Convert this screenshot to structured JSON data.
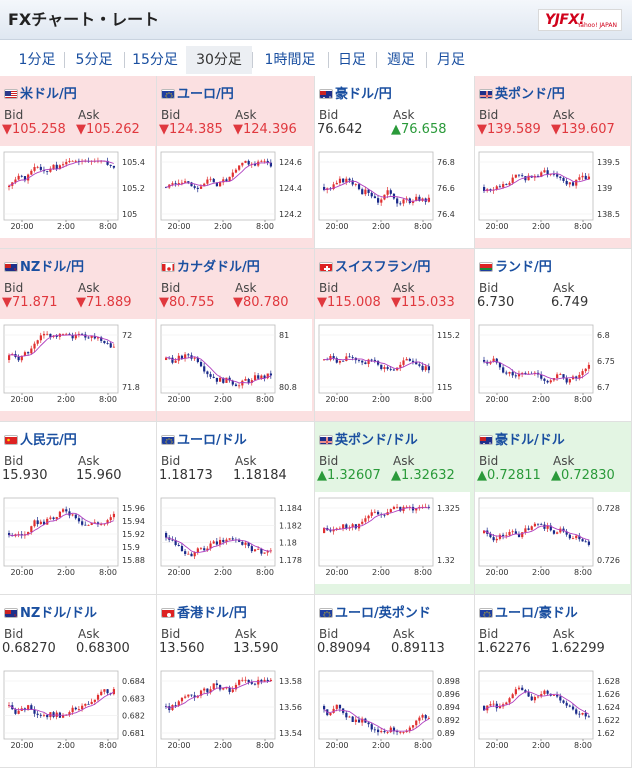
{
  "header": {
    "title": "FXチャート・レート",
    "logo": "YJFX!",
    "logo_sub": "Yahoo! JAPAN"
  },
  "tabs": [
    {
      "label": "1分足",
      "active": false
    },
    {
      "label": "5分足",
      "active": false
    },
    {
      "label": "15分足",
      "active": false
    },
    {
      "label": "30分足",
      "active": true
    },
    {
      "label": "1時間足",
      "active": false
    },
    {
      "label": "日足",
      "active": false
    },
    {
      "label": "週足",
      "active": false
    },
    {
      "label": "月足",
      "active": false
    }
  ],
  "bid_label": "Bid",
  "ask_label": "Ask",
  "colors": {
    "down_bg": "#fbe0e1",
    "up_bg": "#e3f5e3",
    "down_text": "#e0383e",
    "up_text": "#2a9a3a",
    "candle_up": "#e03030",
    "candle_down": "#1a2a8a",
    "ma_line": "#b040c0"
  },
  "pairs": [
    {
      "name": "米ドル/円",
      "flag": "us-icon",
      "state": "down",
      "bid": "▼105.258",
      "ask": "▼105.262",
      "bid_dir": "dn",
      "ask_dir": "dn",
      "chart": {
        "x_labels": [
          "20:00",
          "2:00",
          "8:00"
        ],
        "y_labels": [
          "105.4",
          "105.2",
          "105"
        ],
        "trend": "up",
        "seed": 1
      }
    },
    {
      "name": "ユーロ/円",
      "flag": "eu-icon",
      "state": "down",
      "bid": "▼124.385",
      "ask": "▼124.396",
      "bid_dir": "dn",
      "ask_dir": "dn",
      "chart": {
        "x_labels": [
          "20:00",
          "2:00",
          "8:00"
        ],
        "y_labels": [
          "124.6",
          "124.4",
          "124.2"
        ],
        "trend": "up",
        "seed": 2
      }
    },
    {
      "name": "豪ドル/円",
      "flag": "au-icon",
      "state": "flat",
      "bid": "76.642",
      "ask": "▲76.658",
      "bid_dir": "",
      "ask_dir": "upc",
      "chart": {
        "x_labels": [
          "20:00",
          "2:00",
          "8:00"
        ],
        "y_labels": [
          "76.8",
          "76.6",
          "76.4"
        ],
        "trend": "flat",
        "seed": 3
      }
    },
    {
      "name": "英ポンド/円",
      "flag": "gb-icon",
      "state": "down",
      "bid": "▼139.589",
      "ask": "▼139.607",
      "bid_dir": "dn",
      "ask_dir": "dn",
      "chart": {
        "x_labels": [
          "20:00",
          "2:00",
          "8:00"
        ],
        "y_labels": [
          "139.5",
          "139",
          "138.5"
        ],
        "trend": "up",
        "seed": 4
      }
    },
    {
      "name": "NZドル/円",
      "flag": "nz-icon",
      "state": "down",
      "bid": "▼71.871",
      "ask": "▼71.889",
      "bid_dir": "dn",
      "ask_dir": "dn",
      "chart": {
        "x_labels": [
          "20:00",
          "2:00",
          "8:00"
        ],
        "y_labels": [
          "72",
          "71.8"
        ],
        "trend": "up",
        "seed": 5
      }
    },
    {
      "name": "カナダドル/円",
      "flag": "ca-icon",
      "state": "down",
      "bid": "▼80.755",
      "ask": "▼80.780",
      "bid_dir": "dn",
      "ask_dir": "dn",
      "chart": {
        "x_labels": [
          "20:00",
          "2:00",
          "8:00"
        ],
        "y_labels": [
          "81",
          "80.8"
        ],
        "trend": "flat",
        "seed": 6
      }
    },
    {
      "name": "スイスフラン/円",
      "flag": "ch-icon",
      "state": "down",
      "bid": "▼115.008",
      "ask": "▼115.033",
      "bid_dir": "dn",
      "ask_dir": "dn",
      "chart": {
        "x_labels": [
          "20:00",
          "2:00",
          "8:00"
        ],
        "y_labels": [
          "115.2",
          "115"
        ],
        "trend": "flat",
        "seed": 7
      }
    },
    {
      "name": "ランド/円",
      "flag": "za-icon",
      "state": "flat",
      "bid": "6.730",
      "ask": "6.749",
      "bid_dir": "",
      "ask_dir": "",
      "chart": {
        "x_labels": [
          "20:00",
          "2:00",
          "8:00"
        ],
        "y_labels": [
          "6.8",
          "6.75",
          "6.7"
        ],
        "trend": "down",
        "seed": 8
      }
    },
    {
      "name": "人民元/円",
      "flag": "cn-icon",
      "state": "flat",
      "bid": "15.930",
      "ask": "15.960",
      "bid_dir": "",
      "ask_dir": "",
      "chart": {
        "x_labels": [
          "20:00",
          "2:00",
          "8:00"
        ],
        "y_labels": [
          "15.96",
          "15.94",
          "15.92",
          "15.9",
          "15.88"
        ],
        "trend": "up",
        "seed": 9
      }
    },
    {
      "name": "ユーロ/ドル",
      "flag": "eu-icon",
      "state": "flat",
      "bid": "1.18173",
      "ask": "1.18184",
      "bid_dir": "",
      "ask_dir": "",
      "chart": {
        "x_labels": [
          "20:00",
          "2:00",
          "8:00"
        ],
        "y_labels": [
          "1.184",
          "1.182",
          "1.18",
          "1.178"
        ],
        "trend": "flat",
        "seed": 10
      }
    },
    {
      "name": "英ポンド/ドル",
      "flag": "gb-icon",
      "state": "up",
      "bid": "▲1.32607",
      "ask": "▲1.32632",
      "bid_dir": "upc",
      "ask_dir": "upc",
      "chart": {
        "x_labels": [
          "20:00",
          "2:00",
          "8:00"
        ],
        "y_labels": [
          "1.325",
          "1.32"
        ],
        "trend": "up",
        "seed": 11
      }
    },
    {
      "name": "豪ドル/ドル",
      "flag": "au-icon",
      "state": "up",
      "bid": "▲0.72811",
      "ask": "▲0.72830",
      "bid_dir": "upc",
      "ask_dir": "upc",
      "chart": {
        "x_labels": [
          "20:00",
          "2:00",
          "8:00"
        ],
        "y_labels": [
          "0.728",
          "0.726"
        ],
        "trend": "flat",
        "seed": 12
      }
    },
    {
      "name": "NZドル/ドル",
      "flag": "nz-icon",
      "state": "flat",
      "bid": "0.68270",
      "ask": "0.68300",
      "bid_dir": "",
      "ask_dir": "",
      "chart": {
        "x_labels": [
          "20:00",
          "2:00",
          "8:00"
        ],
        "y_labels": [
          "0.684",
          "0.683",
          "0.682",
          "0.681"
        ],
        "trend": "flat",
        "seed": 13
      }
    },
    {
      "name": "香港ドル/円",
      "flag": "hk-icon",
      "state": "flat",
      "bid": "13.560",
      "ask": "13.590",
      "bid_dir": "",
      "ask_dir": "",
      "chart": {
        "x_labels": [
          "20:00",
          "2:00",
          "8:00"
        ],
        "y_labels": [
          "13.58",
          "13.56",
          "13.54"
        ],
        "trend": "up",
        "seed": 14
      }
    },
    {
      "name": "ユーロ/英ポンド",
      "flag": "eu-icon",
      "state": "flat",
      "bid": "0.89094",
      "ask": "0.89113",
      "bid_dir": "",
      "ask_dir": "",
      "chart": {
        "x_labels": [
          "20:00",
          "2:00",
          "8:00"
        ],
        "y_labels": [
          "0.898",
          "0.896",
          "0.894",
          "0.892",
          "0.89"
        ],
        "trend": "down",
        "seed": 15
      }
    },
    {
      "name": "ユーロ/豪ドル",
      "flag": "eu-icon",
      "state": "flat",
      "bid": "1.62276",
      "ask": "1.62299",
      "bid_dir": "",
      "ask_dir": "",
      "chart": {
        "x_labels": [
          "20:00",
          "2:00",
          "8:00"
        ],
        "y_labels": [
          "1.628",
          "1.626",
          "1.624",
          "1.622",
          "1.62"
        ],
        "trend": "flat",
        "seed": 16
      }
    }
  ]
}
